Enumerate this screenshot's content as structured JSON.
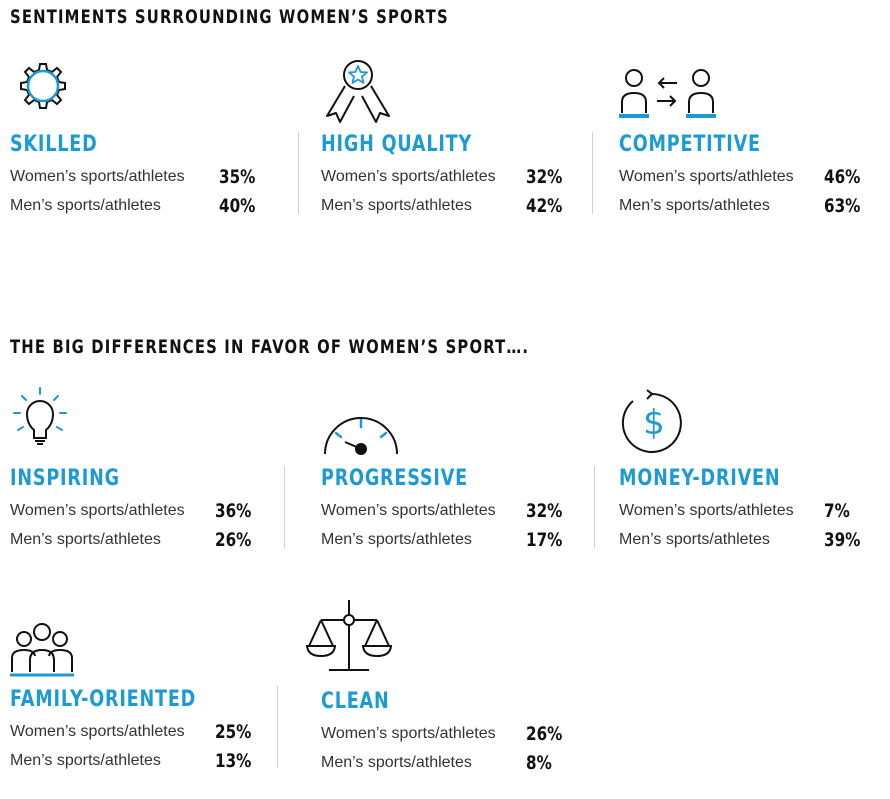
{
  "titles": {
    "section1": "SENTIMENTS SURROUNDING WOMEN’S SPORTS",
    "section2": "THE BIG DIFFERENCES IN FAVOR OF WOMEN’S SPORT…."
  },
  "colors": {
    "accent": "#1b9ad6",
    "text": "#222222",
    "divider": "#d0d0d0"
  },
  "chart_data": {
    "type": "table",
    "series_labels": [
      "Women’s sports/athletes",
      "Men’s sports/athletes"
    ],
    "sentiments": [
      {
        "category": "SKILLED",
        "icon": "gear-icon",
        "women": "35%",
        "men": "40%"
      },
      {
        "category": "HIGH QUALITY",
        "icon": "award-ribbon-icon",
        "women": "32%",
        "men": "42%"
      },
      {
        "category": "COMPETITIVE",
        "icon": "people-exchange-icon",
        "women": "46%",
        "men": "63%"
      }
    ],
    "differences": [
      {
        "category": "INSPIRING",
        "icon": "lightbulb-icon",
        "women": "36%",
        "men": "26%"
      },
      {
        "category": "PROGRESSIVE",
        "icon": "speedometer-icon",
        "women": "32%",
        "men": "17%"
      },
      {
        "category": "MONEY-DRIVEN",
        "icon": "dollar-coin-icon",
        "women": "7%",
        "men": "39%"
      },
      {
        "category": "FAMILY-ORIENTED",
        "icon": "family-icon",
        "women": "25%",
        "men": "13%"
      },
      {
        "category": "CLEAN",
        "icon": "scales-icon",
        "women": "26%",
        "men": "8%"
      }
    ]
  }
}
